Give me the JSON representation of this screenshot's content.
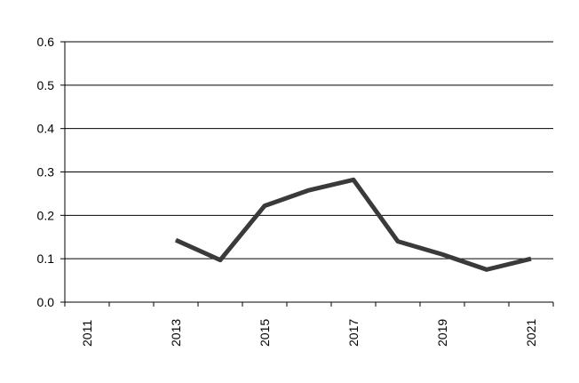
{
  "chart_data": {
    "type": "line",
    "title": "",
    "xlabel": "",
    "ylabel": "",
    "x": [
      2013,
      2014,
      2015,
      2016,
      2017,
      2018,
      2019,
      2020,
      2021
    ],
    "series": [
      {
        "values": [
          0.143,
          0.097,
          0.222,
          0.258,
          0.282,
          0.14,
          0.11,
          0.075,
          0.1
        ]
      }
    ],
    "ylim": [
      0,
      0.6
    ],
    "yticks": [
      0.0,
      0.1,
      0.2,
      0.3,
      0.4,
      0.5,
      0.6
    ],
    "ytick_labels": [
      "0.0",
      "0.1",
      "0.2",
      "0.3",
      "0.4",
      "0.5",
      "0.6"
    ],
    "xticks": [
      2011,
      2013,
      2015,
      2017,
      2019,
      2021
    ],
    "xtick_labels": [
      "2011",
      "2013",
      "2015",
      "2017",
      "2019",
      "2021"
    ],
    "grid": {
      "horizontal": true,
      "vertical": false
    },
    "legend": "none",
    "colors": {
      "line": "#3a3a3a",
      "grid": "#000000",
      "axis": "#000000"
    }
  }
}
